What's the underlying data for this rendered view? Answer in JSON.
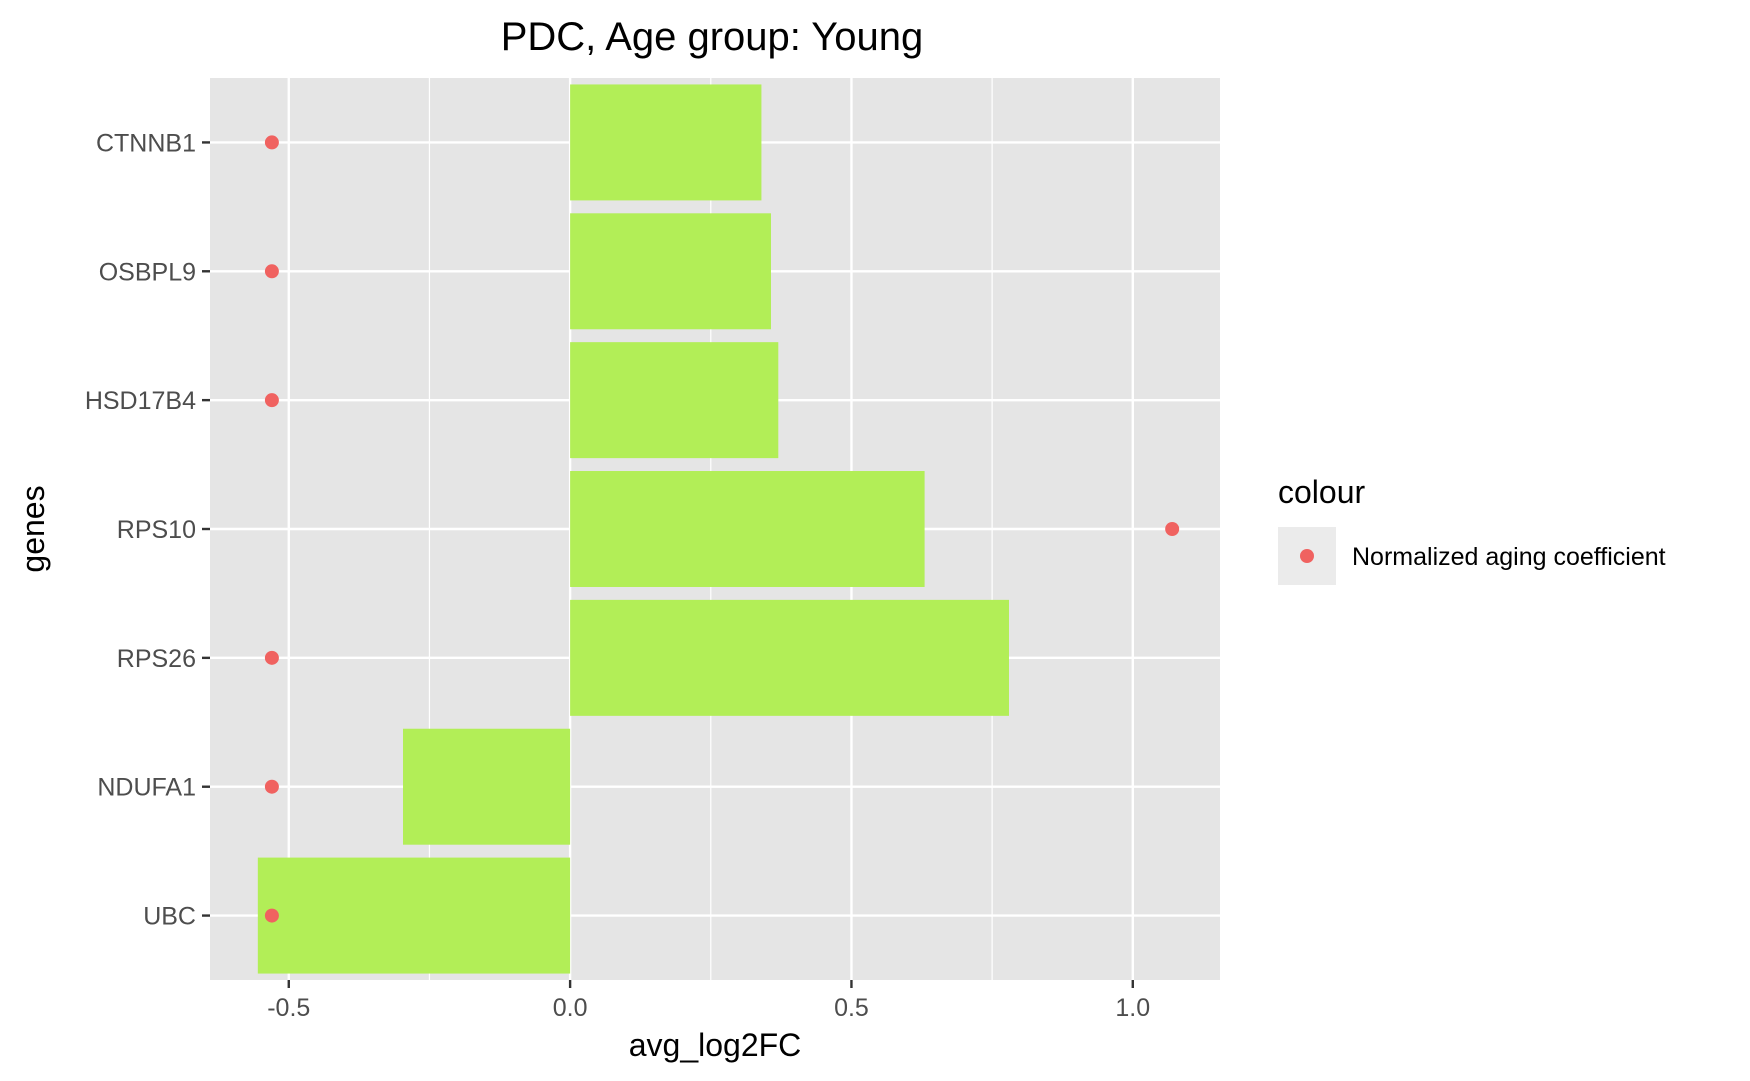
{
  "chart_data": {
    "type": "bar",
    "title": "PDC, Age group: Young",
    "xlabel": "avg_log2FC",
    "ylabel": "genes",
    "orientation": "horizontal",
    "xlim": [
      -0.64,
      1.155
    ],
    "x_ticks": [
      -0.5,
      0.0,
      0.5,
      1.0
    ],
    "x_tick_labels": [
      "-0.5",
      "0.0",
      "0.5",
      "1.0"
    ],
    "categories": [
      "CTNNB1",
      "OSBPL9",
      "HSD17B4",
      "RPS10",
      "RPS26",
      "NDUFA1",
      "UBC"
    ],
    "series": [
      {
        "type": "bar",
        "values": [
          0.34,
          0.357,
          0.37,
          0.63,
          0.78,
          -0.297,
          -0.555
        ],
        "color": "#b2ee57"
      },
      {
        "type": "point",
        "name": "Normalized aging coefficient",
        "values": [
          -0.53,
          -0.53,
          -0.53,
          1.07,
          -0.53,
          -0.53,
          -0.53
        ],
        "color": "#f06260"
      }
    ],
    "legend": {
      "title": "colour",
      "entries": [
        "Normalized aging coefficient"
      ],
      "placement": "right"
    },
    "grid": true,
    "panel_background": "#e5e5e5",
    "grid_color": "#ffffff"
  }
}
